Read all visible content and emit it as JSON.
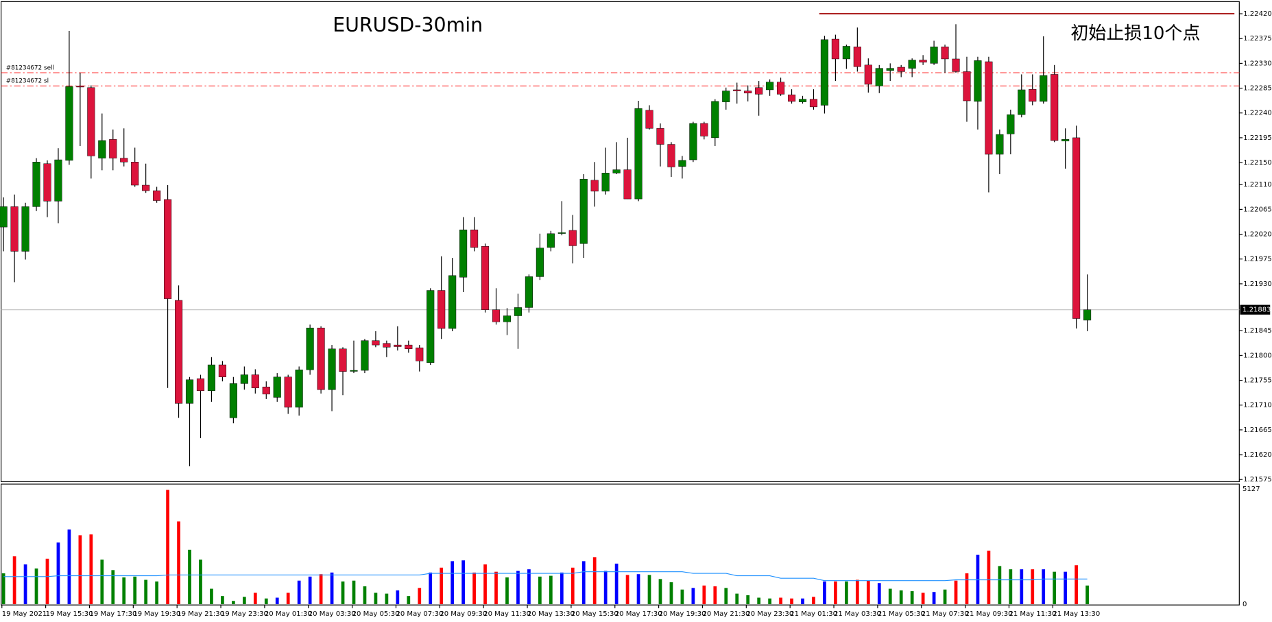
{
  "chart_data": [
    {
      "type": "candlestick",
      "title": "EURUSD-30min",
      "annotation": "初始止损10个点",
      "categories": [
        "19 May 2021",
        null,
        null,
        null,
        "19 May 15:30",
        null,
        null,
        null,
        "19 May 17:30",
        null,
        null,
        null,
        "19 May 19:30",
        null,
        null,
        null,
        "19 May 21:30",
        null,
        null,
        null,
        "19 May 23:30",
        null,
        null,
        null,
        "20 May 01:30",
        null,
        null,
        null,
        "20 May 03:30",
        null,
        null,
        null,
        "20 May 05:30",
        null,
        null,
        null,
        "20 May 07:30",
        null,
        null,
        null,
        "20 May 09:30",
        null,
        null,
        null,
        "20 May 11:30",
        null,
        null,
        null,
        "20 May 13:30",
        null,
        null,
        null,
        "20 May 15:30",
        null,
        null,
        null,
        "20 May 17:30",
        null,
        null,
        null,
        "20 May 19:30",
        null,
        null,
        null,
        "20 May 21:30",
        null,
        null,
        null,
        "20 May 23:30",
        null,
        null,
        null,
        "21 May 01:30",
        null,
        null,
        null,
        "21 May 03:30",
        null,
        null,
        null,
        "21 May 05:30",
        null,
        null,
        null,
        "21 May 07:30",
        null,
        null,
        null,
        "21 May 09:30",
        null,
        null,
        null,
        "21 May 11:30",
        null,
        null,
        null,
        "21 May 13:30",
        null,
        null,
        null
      ],
      "open": [
        1.22033,
        1.2207,
        1.21989,
        1.2207,
        1.22148,
        1.2208,
        1.22154,
        1.22289,
        1.22286,
        1.22158,
        1.22192,
        1.22158,
        1.22151,
        1.22109,
        1.22099,
        1.22083,
        1.219,
        1.21713,
        1.21758,
        1.21736,
        1.21783,
        1.21687,
        1.21749,
        1.21765,
        1.21743,
        1.21724,
        1.21761,
        1.21706,
        1.21774,
        1.2185,
        1.21738,
        1.21812,
        1.21772,
        1.21773,
        1.21827,
        1.21822,
        1.21819,
        1.21819,
        1.21814,
        1.21787,
        1.21918,
        1.21849,
        1.21942,
        1.22028,
        1.21998,
        1.21883,
        1.21861,
        1.21872,
        1.21887,
        1.21943,
        1.21996,
        1.22022,
        1.22027,
        1.22003,
        1.22118,
        1.22098,
        1.22131,
        1.22137,
        1.22084,
        1.22245,
        1.22212,
        1.22183,
        1.22143,
        1.22155,
        1.22221,
        1.22195,
        1.2226,
        1.22282,
        1.2228,
        1.22286,
        1.22282,
        1.22296,
        1.22273,
        1.2226,
        1.22265,
        1.22254,
        1.22374,
        1.22338,
        1.2236,
        1.22327,
        1.22289,
        1.22317,
        1.22323,
        1.22321,
        1.22336,
        1.2233,
        1.2236,
        1.22338,
        1.22315,
        1.22261,
        1.22333,
        1.22165,
        1.22202,
        1.22237,
        1.22283,
        1.22261,
        1.2231,
        1.22189,
        1.22195,
        1.21864
      ],
      "high": [
        1.22087,
        1.22092,
        1.22077,
        1.22158,
        1.22154,
        1.22176,
        1.22389,
        1.22313,
        1.2229,
        1.22239,
        1.2221,
        1.22212,
        1.22177,
        1.22148,
        1.22106,
        1.22109,
        1.21927,
        1.21761,
        1.21765,
        1.21797,
        1.2179,
        1.21761,
        1.2178,
        1.21775,
        1.21753,
        1.21768,
        1.21765,
        1.2178,
        1.21856,
        1.21853,
        1.21819,
        1.21815,
        1.21827,
        1.2183,
        1.21844,
        1.21827,
        1.21853,
        1.21827,
        1.21819,
        1.21922,
        1.2198,
        1.21977,
        1.22051,
        1.22051,
        1.22003,
        1.21922,
        1.21886,
        1.21912,
        1.21947,
        1.22021,
        1.22026,
        1.2208,
        1.22055,
        1.22129,
        1.22151,
        1.22177,
        1.22187,
        1.22195,
        1.22262,
        1.22254,
        1.22221,
        1.22187,
        1.22162,
        1.22224,
        1.22224,
        1.22265,
        1.22286,
        1.22295,
        1.2229,
        1.22298,
        1.22301,
        1.22304,
        1.22283,
        1.22271,
        1.22283,
        1.2238,
        1.22382,
        1.22364,
        1.22395,
        1.22339,
        1.22327,
        1.2233,
        1.22327,
        1.22339,
        1.22345,
        1.22371,
        1.22364,
        1.22401,
        1.22342,
        1.22342,
        1.22342,
        1.2221,
        1.22246,
        1.2231,
        1.2231,
        1.22379,
        1.22327,
        1.22212,
        1.22217,
        1.21947
      ],
      "low": [
        1.21989,
        1.21933,
        1.21974,
        1.22062,
        1.22051,
        1.2204,
        1.22146,
        1.2218,
        1.22121,
        1.22136,
        1.22136,
        1.22143,
        1.22106,
        1.22095,
        1.22077,
        1.21741,
        1.21687,
        1.21599,
        1.2165,
        1.21716,
        1.21753,
        1.21677,
        1.21738,
        1.21731,
        1.21721,
        1.21716,
        1.21694,
        1.21691,
        1.21765,
        1.21731,
        1.21699,
        1.21728,
        1.21768,
        1.21768,
        1.21815,
        1.21797,
        1.21809,
        1.21805,
        1.21771,
        1.21783,
        1.2183,
        1.21844,
        1.21915,
        1.21989,
        1.21878,
        1.21856,
        1.21837,
        1.21812,
        1.21878,
        1.21937,
        1.21989,
        1.22018,
        1.21967,
        1.21977,
        1.2207,
        1.22092,
        1.22129,
        1.22084,
        1.2208,
        1.2221,
        1.22143,
        1.22124,
        1.22121,
        1.22151,
        1.22192,
        1.2218,
        1.22246,
        1.22257,
        1.22261,
        1.22235,
        1.22271,
        1.22271,
        1.22257,
        1.22257,
        1.22246,
        1.22239,
        1.22298,
        1.2232,
        1.22315,
        1.22277,
        1.22276,
        1.22298,
        1.22305,
        1.22305,
        1.22327,
        1.22327,
        1.22313,
        1.22313,
        1.22224,
        1.2221,
        1.22096,
        1.22129,
        1.22165,
        1.22232,
        1.22254,
        1.22257,
        1.22187,
        1.22139,
        1.21849,
        1.21844
      ],
      "close": [
        1.2207,
        1.21989,
        1.2207,
        1.22151,
        1.2208,
        1.22155,
        1.22288,
        1.22287,
        1.22162,
        1.2219,
        1.22158,
        1.22151,
        1.22109,
        1.22099,
        1.22081,
        1.21903,
        1.21713,
        1.21756,
        1.21736,
        1.21783,
        1.21761,
        1.21749,
        1.21765,
        1.21741,
        1.2173,
        1.21761,
        1.21706,
        1.21774,
        1.2185,
        1.21738,
        1.21812,
        1.21771,
        1.21773,
        1.21827,
        1.21819,
        1.21815,
        1.21816,
        1.21812,
        1.2179,
        1.21918,
        1.21849,
        1.21945,
        1.22028,
        1.21996,
        1.21883,
        1.21861,
        1.21872,
        1.21887,
        1.21943,
        1.21995,
        1.22021,
        1.22023,
        1.21999,
        1.2212,
        1.22098,
        1.22131,
        1.22137,
        1.22084,
        1.22248,
        1.22212,
        1.22183,
        1.22142,
        1.22154,
        1.22221,
        1.22198,
        1.22261,
        1.2228,
        1.2228,
        1.22276,
        1.22274,
        1.22296,
        1.22274,
        1.22261,
        1.22265,
        1.22251,
        1.22373,
        1.22338,
        1.22361,
        1.22324,
        1.22292,
        1.22321,
        1.22321,
        1.22315,
        1.22336,
        1.22332,
        1.2236,
        1.22338,
        1.22315,
        1.22262,
        1.22335,
        1.22165,
        1.22201,
        1.22237,
        1.22282,
        1.22261,
        1.22308,
        1.2219,
        1.22192,
        1.21867,
        1.21883
      ],
      "up_color": "#008000",
      "down_color": "#dc143c",
      "ylim": [
        1.21571,
        1.22442
      ],
      "yticks": [
        {
          "value": 1.2242,
          "label": "1.22420"
        },
        {
          "value": 1.22375,
          "label": "1.22375"
        },
        {
          "value": 1.2233,
          "label": "1.22330"
        },
        {
          "value": 1.22285,
          "label": "1.22285"
        },
        {
          "value": 1.2224,
          "label": "1.22240"
        },
        {
          "value": 1.22195,
          "label": "1.22195"
        },
        {
          "value": 1.2215,
          "label": "1.22150"
        },
        {
          "value": 1.2211,
          "label": "1.22110"
        },
        {
          "value": 1.22065,
          "label": "1.22065"
        },
        {
          "value": 1.2202,
          "label": "1.22020"
        },
        {
          "value": 1.21975,
          "label": "1.21975"
        },
        {
          "value": 1.2193,
          "label": "1.21930"
        },
        {
          "value": 1.21845,
          "label": "1.21845"
        },
        {
          "value": 1.218,
          "label": "1.21800"
        },
        {
          "value": 1.21755,
          "label": "1.21755"
        },
        {
          "value": 1.2171,
          "label": "1.21710"
        },
        {
          "value": 1.21665,
          "label": "1.21665"
        },
        {
          "value": 1.2162,
          "label": "1.21620"
        },
        {
          "value": 1.21575,
          "label": "1.21575"
        }
      ],
      "levels": [
        {
          "label": "#81234672 sell",
          "value": 1.22313,
          "color": "#ff3b3b"
        },
        {
          "label": "#81234672 sl",
          "value": 1.22289,
          "color": "#ff3b3b"
        }
      ],
      "stop_line": {
        "value": 1.2242,
        "color": "#a00000"
      },
      "last_price": {
        "value": 1.21883,
        "label": "1.21883"
      }
    },
    {
      "type": "bar",
      "values": [
        1372,
        2130,
        1769,
        1588,
        2022,
        2744,
        3321,
        3069,
        3105,
        1986,
        1516,
        1191,
        1227,
        1083,
        1011,
        5090,
        3682,
        2419,
        1986,
        686,
        361,
        144,
        325,
        505,
        253,
        289,
        505,
        1047,
        1227,
        1336,
        1408,
        1011,
        1047,
        794,
        505,
        469,
        614,
        361,
        722,
        1408,
        1625,
        1913,
        1949,
        1408,
        1769,
        1444,
        1191,
        1480,
        1552,
        1227,
        1264,
        1408,
        1625,
        1913,
        2094,
        1480,
        1805,
        1300,
        1336,
        1300,
        1119,
        975,
        650,
        722,
        830,
        794,
        722,
        469,
        397,
        289,
        253,
        289,
        253,
        253,
        325,
        1011,
        1011,
        1011,
        1083,
        1047,
        939,
        686,
        614,
        578,
        505,
        542,
        650,
        1047,
        1372,
        2202,
        2383,
        1697,
        1552,
        1552,
        1552,
        1552,
        1444,
        1444,
        1733,
        830
      ],
      "colors": [
        "green",
        "red",
        "blue",
        "green",
        "red",
        "blue",
        "blue",
        "red",
        "red",
        "green",
        "green",
        "green",
        "green",
        "green",
        "green",
        "red",
        "red",
        "green",
        "green",
        "green",
        "green",
        "green",
        "green",
        "red",
        "green",
        "blue",
        "red",
        "blue",
        "blue",
        "red",
        "blue",
        "green",
        "green",
        "green",
        "green",
        "green",
        "blue",
        "green",
        "red",
        "blue",
        "red",
        "blue",
        "blue",
        "red",
        "red",
        "red",
        "green",
        "blue",
        "blue",
        "green",
        "green",
        "blue",
        "red",
        "blue",
        "red",
        "blue",
        "blue",
        "red",
        "blue",
        "green",
        "green",
        "green",
        "green",
        "blue",
        "red",
        "red",
        "green",
        "green",
        "green",
        "green",
        "green",
        "red",
        "red",
        "blue",
        "red",
        "blue",
        "red",
        "green",
        "red",
        "red",
        "blue",
        "green",
        "green",
        "green",
        "red",
        "blue",
        "green",
        "red",
        "red",
        "blue",
        "red",
        "green",
        "green",
        "blue",
        "red",
        "blue",
        "green",
        "blue",
        "red",
        "green"
      ],
      "ma": {
        "color": "#1e90ff",
        "values": [
          1227,
          1227,
          1227,
          1227,
          1227,
          1264,
          1264,
          1264,
          1264,
          1264,
          1264,
          1264,
          1264,
          1264,
          1264,
          1300,
          1300,
          1300,
          1300,
          1300,
          1300,
          1300,
          1300,
          1300,
          1300,
          1300,
          1300,
          1300,
          1300,
          1300,
          1300,
          1300,
          1300,
          1300,
          1300,
          1300,
          1300,
          1300,
          1300,
          1372,
          1372,
          1372,
          1372,
          1372,
          1372,
          1372,
          1372,
          1372,
          1372,
          1372,
          1372,
          1372,
          1372,
          1444,
          1444,
          1444,
          1444,
          1444,
          1444,
          1444,
          1444,
          1444,
          1444,
          1372,
          1372,
          1372,
          1372,
          1264,
          1264,
          1264,
          1264,
          1155,
          1155,
          1155,
          1155,
          1047,
          1047,
          1047,
          1047,
          1047,
          1047,
          1047,
          1047,
          1047,
          1047,
          1047,
          1047,
          1083,
          1083,
          1083,
          1083,
          1083,
          1083,
          1083,
          1083,
          1119,
          1119,
          1119,
          1119,
          1119
        ]
      },
      "ylim": [
        0,
        5127
      ],
      "yticks": [
        5127,
        0
      ]
    }
  ]
}
